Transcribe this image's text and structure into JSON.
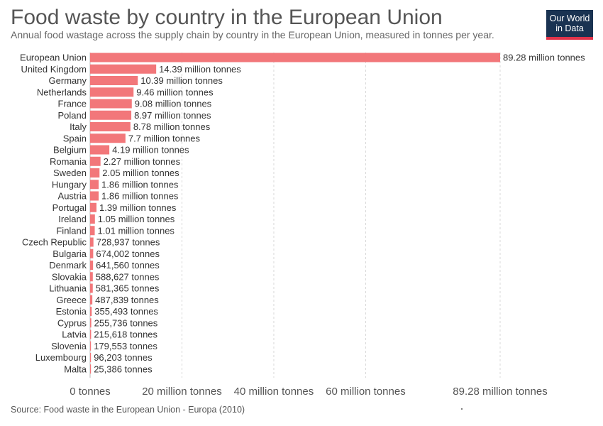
{
  "header": {
    "title": "Food waste by country in the European Union",
    "subtitle": "Annual food wastage across the supply chain by country in the European Union, measured in tonnes per year."
  },
  "logo": {
    "line1": "Our World",
    "line2": "in Data"
  },
  "footer": {
    "source": "Source: Food waste in the European Union - Europa (2010)"
  },
  "colors": {
    "bar": "#f2777a",
    "grid": "#d8d8d8",
    "logo_bg": "#1a3352",
    "logo_accent": "#e0334a"
  },
  "chart_data": {
    "type": "bar",
    "orientation": "horizontal",
    "xlim": [
      0,
      89280000
    ],
    "xticks": [
      0,
      20000000,
      40000000,
      60000000,
      89280000
    ],
    "xtick_labels": [
      "0 tonnes",
      "20 million tonnes",
      "40 million tonnes",
      "60 million tonnes",
      "89.28 million tonnes"
    ],
    "grid": true,
    "categories": [
      "European Union",
      "United Kingdom",
      "Germany",
      "Netherlands",
      "France",
      "Poland",
      "Italy",
      "Spain",
      "Belgium",
      "Romania",
      "Sweden",
      "Hungary",
      "Austria",
      "Portugal",
      "Ireland",
      "Finland",
      "Czech Republic",
      "Bulgaria",
      "Denmark",
      "Slovakia",
      "Lithuania",
      "Greece",
      "Estonia",
      "Cyprus",
      "Latvia",
      "Slovenia",
      "Luxembourg",
      "Malta"
    ],
    "values": [
      89280000,
      14390000,
      10390000,
      9460000,
      9080000,
      8970000,
      8780000,
      7700000,
      4190000,
      2270000,
      2050000,
      1860000,
      1860000,
      1390000,
      1050000,
      1010000,
      728937,
      674002,
      641560,
      588627,
      581365,
      487839,
      355493,
      255736,
      215618,
      179553,
      96203,
      25386
    ],
    "value_labels": [
      "89.28 million tonnes",
      "14.39 million tonnes",
      "10.39 million tonnes",
      "9.46 million tonnes",
      "9.08 million tonnes",
      "8.97 million tonnes",
      "8.78 million tonnes",
      "7.7 million tonnes",
      "4.19 million tonnes",
      "2.27 million tonnes",
      "2.05 million tonnes",
      "1.86 million tonnes",
      "1.86 million tonnes",
      "1.39 million tonnes",
      "1.05 million tonnes",
      "1.01 million tonnes",
      "728,937 tonnes",
      "674,002 tonnes",
      "641,560 tonnes",
      "588,627 tonnes",
      "581,365 tonnes",
      "487,839 tonnes",
      "355,493 tonnes",
      "255,736 tonnes",
      "215,618 tonnes",
      "179,553 tonnes",
      "96,203 tonnes",
      "25,386 tonnes"
    ]
  }
}
